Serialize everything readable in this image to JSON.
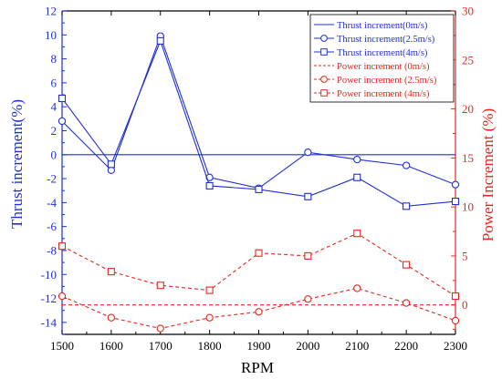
{
  "colors": {
    "thrust": "#1f2fd6",
    "power": "#e8271e",
    "frame": "#000000"
  },
  "chart_data": {
    "type": "line",
    "xlabel": "RPM",
    "ylabel_left": "Thrust increment(%)",
    "ylabel_right": "Power Increment (%)",
    "xlim": [
      1500,
      2300
    ],
    "ylim_left": [
      -15,
      12
    ],
    "ylim_right": [
      -3,
      30
    ],
    "x": [
      1500,
      1600,
      1700,
      1800,
      1900,
      2000,
      2100,
      2200,
      2300
    ],
    "x_ticks": [
      "1500",
      "1600",
      "1700",
      "1800",
      "1900",
      "2000",
      "2100",
      "2200",
      "2300"
    ],
    "y_left_ticks": [
      "-14",
      "-12",
      "-10",
      "-8",
      "-6",
      "-4",
      "-2",
      "0",
      "2",
      "4",
      "6",
      "8",
      "10",
      "12"
    ],
    "y_right_ticks": [
      "0",
      "5",
      "10",
      "15",
      "20",
      "25",
      "30"
    ],
    "grid": false,
    "legend_position": "top-right",
    "series": [
      {
        "name": "Thrust increment(0m/s)",
        "axis": "left",
        "style": "solid",
        "marker": "none",
        "values": [
          0,
          0,
          0,
          0,
          0,
          0,
          0,
          0,
          0
        ]
      },
      {
        "name": "Thrust  increment(2.5m/s)",
        "axis": "left",
        "style": "solid",
        "marker": "circle",
        "values": [
          2.8,
          -1.3,
          9.9,
          -1.9,
          -2.8,
          0.2,
          -0.4,
          -0.9,
          -2.5
        ]
      },
      {
        "name": "Thrust increment(4m/s)",
        "axis": "left",
        "style": "solid",
        "marker": "square",
        "values": [
          4.7,
          -0.8,
          9.5,
          -2.6,
          -2.9,
          -3.5,
          -1.9,
          -4.3,
          -3.9
        ]
      },
      {
        "name": "Power increment (0m/s)",
        "axis": "right",
        "style": "dashed",
        "marker": "none",
        "values": [
          0,
          0,
          0,
          0,
          0,
          0,
          0,
          0,
          0
        ]
      },
      {
        "name": "Power increment (2.5m/s)",
        "axis": "right",
        "style": "dashed",
        "marker": "circle",
        "values": [
          0.9,
          -1.3,
          -2.4,
          -1.3,
          -0.7,
          0.6,
          1.7,
          0.2,
          -1.6
        ]
      },
      {
        "name": "Power increment (4m/s)",
        "axis": "right",
        "style": "dashed",
        "marker": "square",
        "values": [
          6.0,
          3.4,
          2.0,
          1.5,
          5.3,
          5.0,
          7.3,
          4.1,
          0.9
        ]
      }
    ]
  }
}
